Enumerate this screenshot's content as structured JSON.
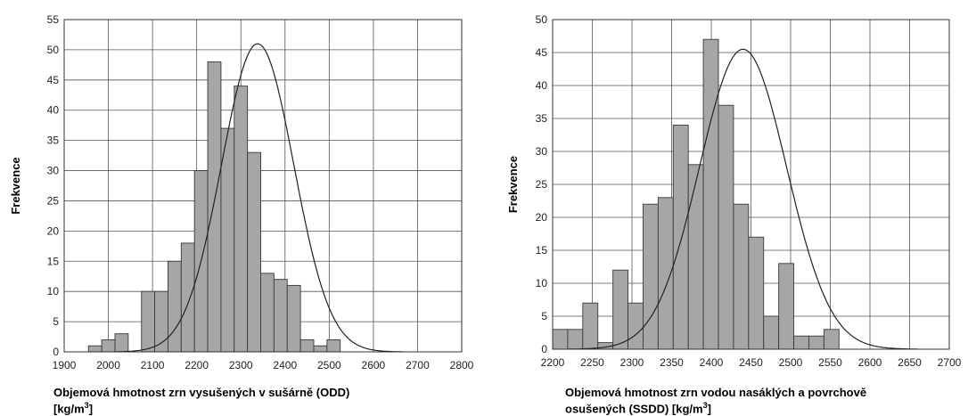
{
  "chart_data": [
    {
      "type": "bar",
      "subtype": "histogram",
      "ylabel": "Frekvence",
      "xlabel_line1": "Objemová hmotnost zrn vysušených v sušárně (ODD)",
      "xlabel_unit_pre": "[kg/m",
      "xlabel_unit_sup": "3",
      "xlabel_unit_post": "]",
      "xlim": [
        1900,
        2800
      ],
      "ylim": [
        0,
        55
      ],
      "xticks": [
        1900,
        2000,
        2100,
        2200,
        2300,
        2400,
        2500,
        2600,
        2700,
        2800
      ],
      "yticks": [
        0,
        5,
        10,
        15,
        20,
        25,
        30,
        35,
        40,
        45,
        50,
        55
      ],
      "grid": true,
      "bar_width": 30,
      "bins_start": [
        1955,
        1985,
        2015,
        2045,
        2075,
        2105,
        2135,
        2165,
        2195,
        2225,
        2255,
        2285,
        2315,
        2345,
        2375,
        2405,
        2435,
        2465,
        2495,
        2525,
        2555,
        2585,
        2615,
        2645
      ],
      "values": [
        1,
        2,
        3,
        0,
        10,
        10,
        15,
        18,
        30,
        48,
        37,
        44,
        33,
        13,
        12,
        11,
        2,
        1,
        2,
        0,
        0,
        0,
        0,
        0
      ],
      "normal_curve": {
        "mean": 2338,
        "sd": 82,
        "peak": 51
      }
    },
    {
      "type": "bar",
      "subtype": "histogram",
      "ylabel": "Frekvence",
      "xlabel_line1": "Objemová hmotnost zrn vodou nasáklých a povrchově",
      "xlabel_line2_pre": "osušených (SSDD) [kg/m",
      "xlabel_unit_sup": "3",
      "xlabel_unit_post": "]",
      "xlim": [
        2200,
        2700
      ],
      "ylim": [
        0,
        50
      ],
      "xticks": [
        2200,
        2250,
        2300,
        2350,
        2400,
        2450,
        2500,
        2550,
        2600,
        2650,
        2700
      ],
      "yticks": [
        0,
        5,
        10,
        15,
        20,
        25,
        30,
        35,
        40,
        45,
        50
      ],
      "grid": true,
      "bar_width": 19,
      "bins_start": [
        2200,
        2219,
        2238,
        2257,
        2276,
        2295,
        2314,
        2333,
        2352,
        2371,
        2390,
        2409,
        2428,
        2447,
        2466,
        2485,
        2504,
        2523,
        2542,
        2561,
        2580,
        2599,
        2618,
        2637,
        2656
      ],
      "values": [
        3,
        3,
        7,
        1,
        12,
        7,
        22,
        23,
        34,
        28,
        47,
        37,
        22,
        17,
        5,
        13,
        2,
        2,
        3,
        0,
        0,
        0,
        0,
        0,
        0
      ],
      "normal_curve": {
        "mean": 2440,
        "sd": 55,
        "peak": 45.5
      }
    }
  ]
}
